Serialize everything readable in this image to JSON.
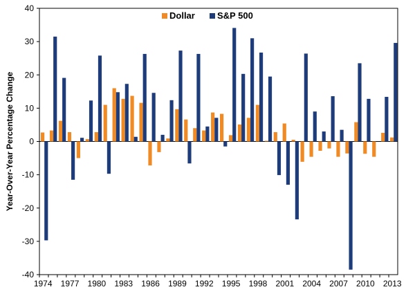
{
  "chart_data": {
    "type": "bar",
    "ylabel": "Year-Over-Year Percentage Change",
    "xlabel": "",
    "ylim": [
      -40,
      40
    ],
    "yticks": [
      -40,
      -30,
      -20,
      -10,
      0,
      10,
      20,
      30,
      40
    ],
    "grid": false,
    "legend": "top-center",
    "categories": [
      "1974",
      "1975",
      "1976",
      "1977",
      "1978",
      "1979",
      "1980",
      "1981",
      "1982",
      "1983",
      "1984",
      "1985",
      "1986",
      "1987",
      "1988",
      "1989",
      "1990",
      "1991",
      "1992",
      "1993",
      "1994",
      "1995",
      "1996",
      "1997",
      "1998",
      "1999",
      "2000",
      "2001",
      "2002",
      "2003",
      "2004",
      "2005",
      "2006",
      "2007",
      "2008",
      "2009",
      "2010",
      "2011",
      "2012",
      "2013"
    ],
    "xtick_labels": [
      "1974",
      "1977",
      "1980",
      "1983",
      "1986",
      "1989",
      "1992",
      "1995",
      "1998",
      "2001",
      "2004",
      "2007",
      "2010",
      "2013"
    ],
    "series": [
      {
        "name": "Dollar",
        "color": "#f08a24",
        "values": [
          2.7,
          3.3,
          6.2,
          2.8,
          -5.0,
          0.7,
          2.8,
          11.0,
          16.0,
          12.8,
          13.7,
          11.6,
          -7.2,
          -3.2,
          0.9,
          9.7,
          6.6,
          4.0,
          3.3,
          8.7,
          8.3,
          1.9,
          5.1,
          7.1,
          11.0,
          0.2,
          2.8,
          5.4,
          0.5,
          -6.1,
          -4.6,
          -2.8,
          -2.1,
          -4.6,
          -3.6,
          5.8,
          -3.7,
          -4.6,
          2.6,
          1.2
        ]
      },
      {
        "name": "S&P 500",
        "color": "#1f3c7a",
        "values": [
          -29.7,
          31.5,
          19.1,
          -11.5,
          1.1,
          12.3,
          25.8,
          -9.7,
          14.8,
          17.3,
          1.4,
          26.3,
          14.6,
          2.0,
          12.4,
          27.3,
          -6.6,
          26.3,
          4.5,
          7.1,
          -1.5,
          34.1,
          20.3,
          31.0,
          26.7,
          19.5,
          -10.1,
          -13.0,
          -23.4,
          26.4,
          9.0,
          3.0,
          13.6,
          3.5,
          -38.5,
          23.5,
          12.8,
          0.0,
          13.4,
          29.6
        ]
      }
    ]
  }
}
